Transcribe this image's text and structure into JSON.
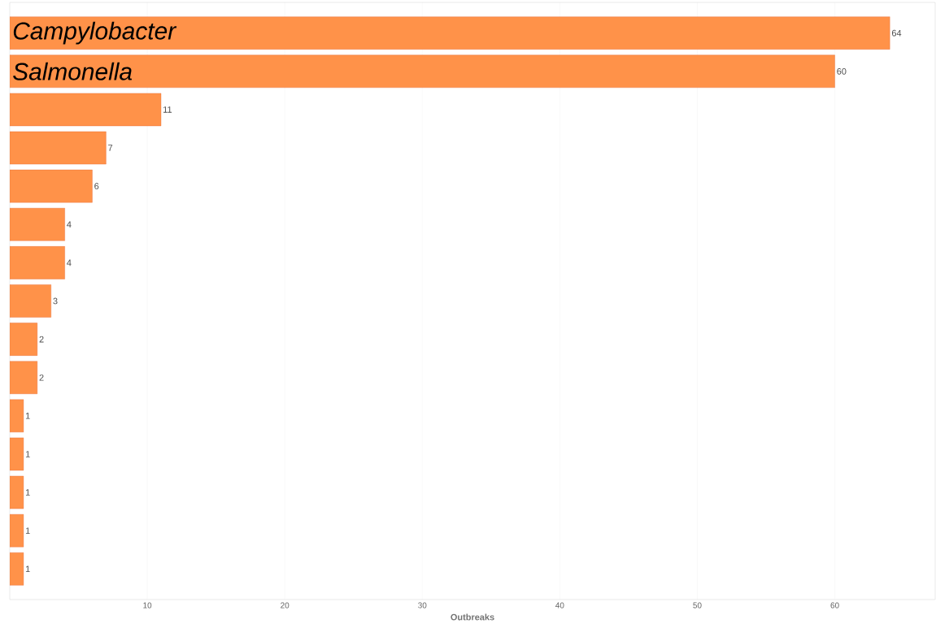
{
  "chart_data": {
    "type": "bar",
    "orientation": "horizontal",
    "categories": [
      "Campylobacter",
      "Salmonella",
      null,
      null,
      null,
      null,
      null,
      null,
      null,
      null,
      null,
      null,
      null,
      null,
      null
    ],
    "values": [
      64,
      60,
      11,
      7,
      6,
      4,
      4,
      3,
      2,
      2,
      1,
      1,
      1,
      1,
      1
    ],
    "color": "#ff9249",
    "xlabel": "Outbreaks",
    "xlim": [
      0,
      67.3
    ],
    "xticks": [
      10,
      20,
      30,
      40,
      50,
      60
    ],
    "grid": "x",
    "data_labels": true
  }
}
